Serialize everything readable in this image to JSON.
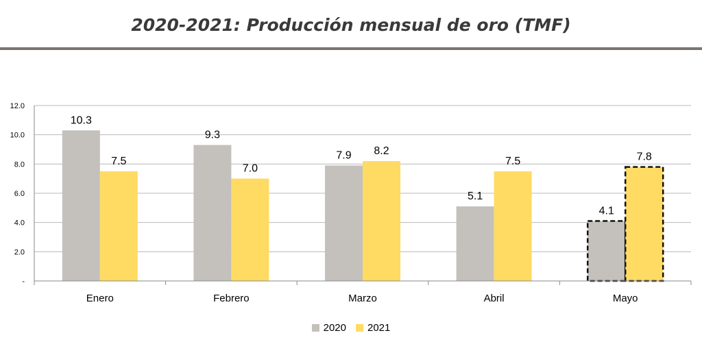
{
  "title": "2020-2021: Producción mensual de oro (TMF)",
  "colors": {
    "s2020": "#c4c0bc",
    "s2021": "#ffdb63",
    "grid": "#b8b8b8",
    "rule": "#7a7570"
  },
  "chart_data": {
    "type": "bar",
    "categories": [
      "Enero",
      "Febrero",
      "Marzo",
      "Abril",
      "Mayo"
    ],
    "series": [
      {
        "name": "2020",
        "values": [
          10.3,
          9.3,
          7.9,
          5.1,
          4.1
        ]
      },
      {
        "name": "2021",
        "values": [
          7.5,
          7.0,
          8.2,
          7.5,
          7.8
        ]
      }
    ],
    "data_labels": [
      [
        "10.3",
        "9.3",
        "7.9",
        "5.1",
        "4.1"
      ],
      [
        "7.5",
        "7.0",
        "8.2",
        "7.5",
        "7.8"
      ]
    ],
    "ylim": [
      0,
      12
    ],
    "yticks": [
      0,
      2,
      4,
      6,
      8,
      10,
      12
    ],
    "ytick_labels": [
      "-",
      "2.0",
      "4.0",
      "6.0",
      "8.0",
      "10.0",
      "12.0"
    ],
    "highlighted_category": "Mayo",
    "highlight_style": "dashed outline",
    "grid": true,
    "legend_position": "bottom-center",
    "xlabel": "",
    "ylabel": ""
  }
}
